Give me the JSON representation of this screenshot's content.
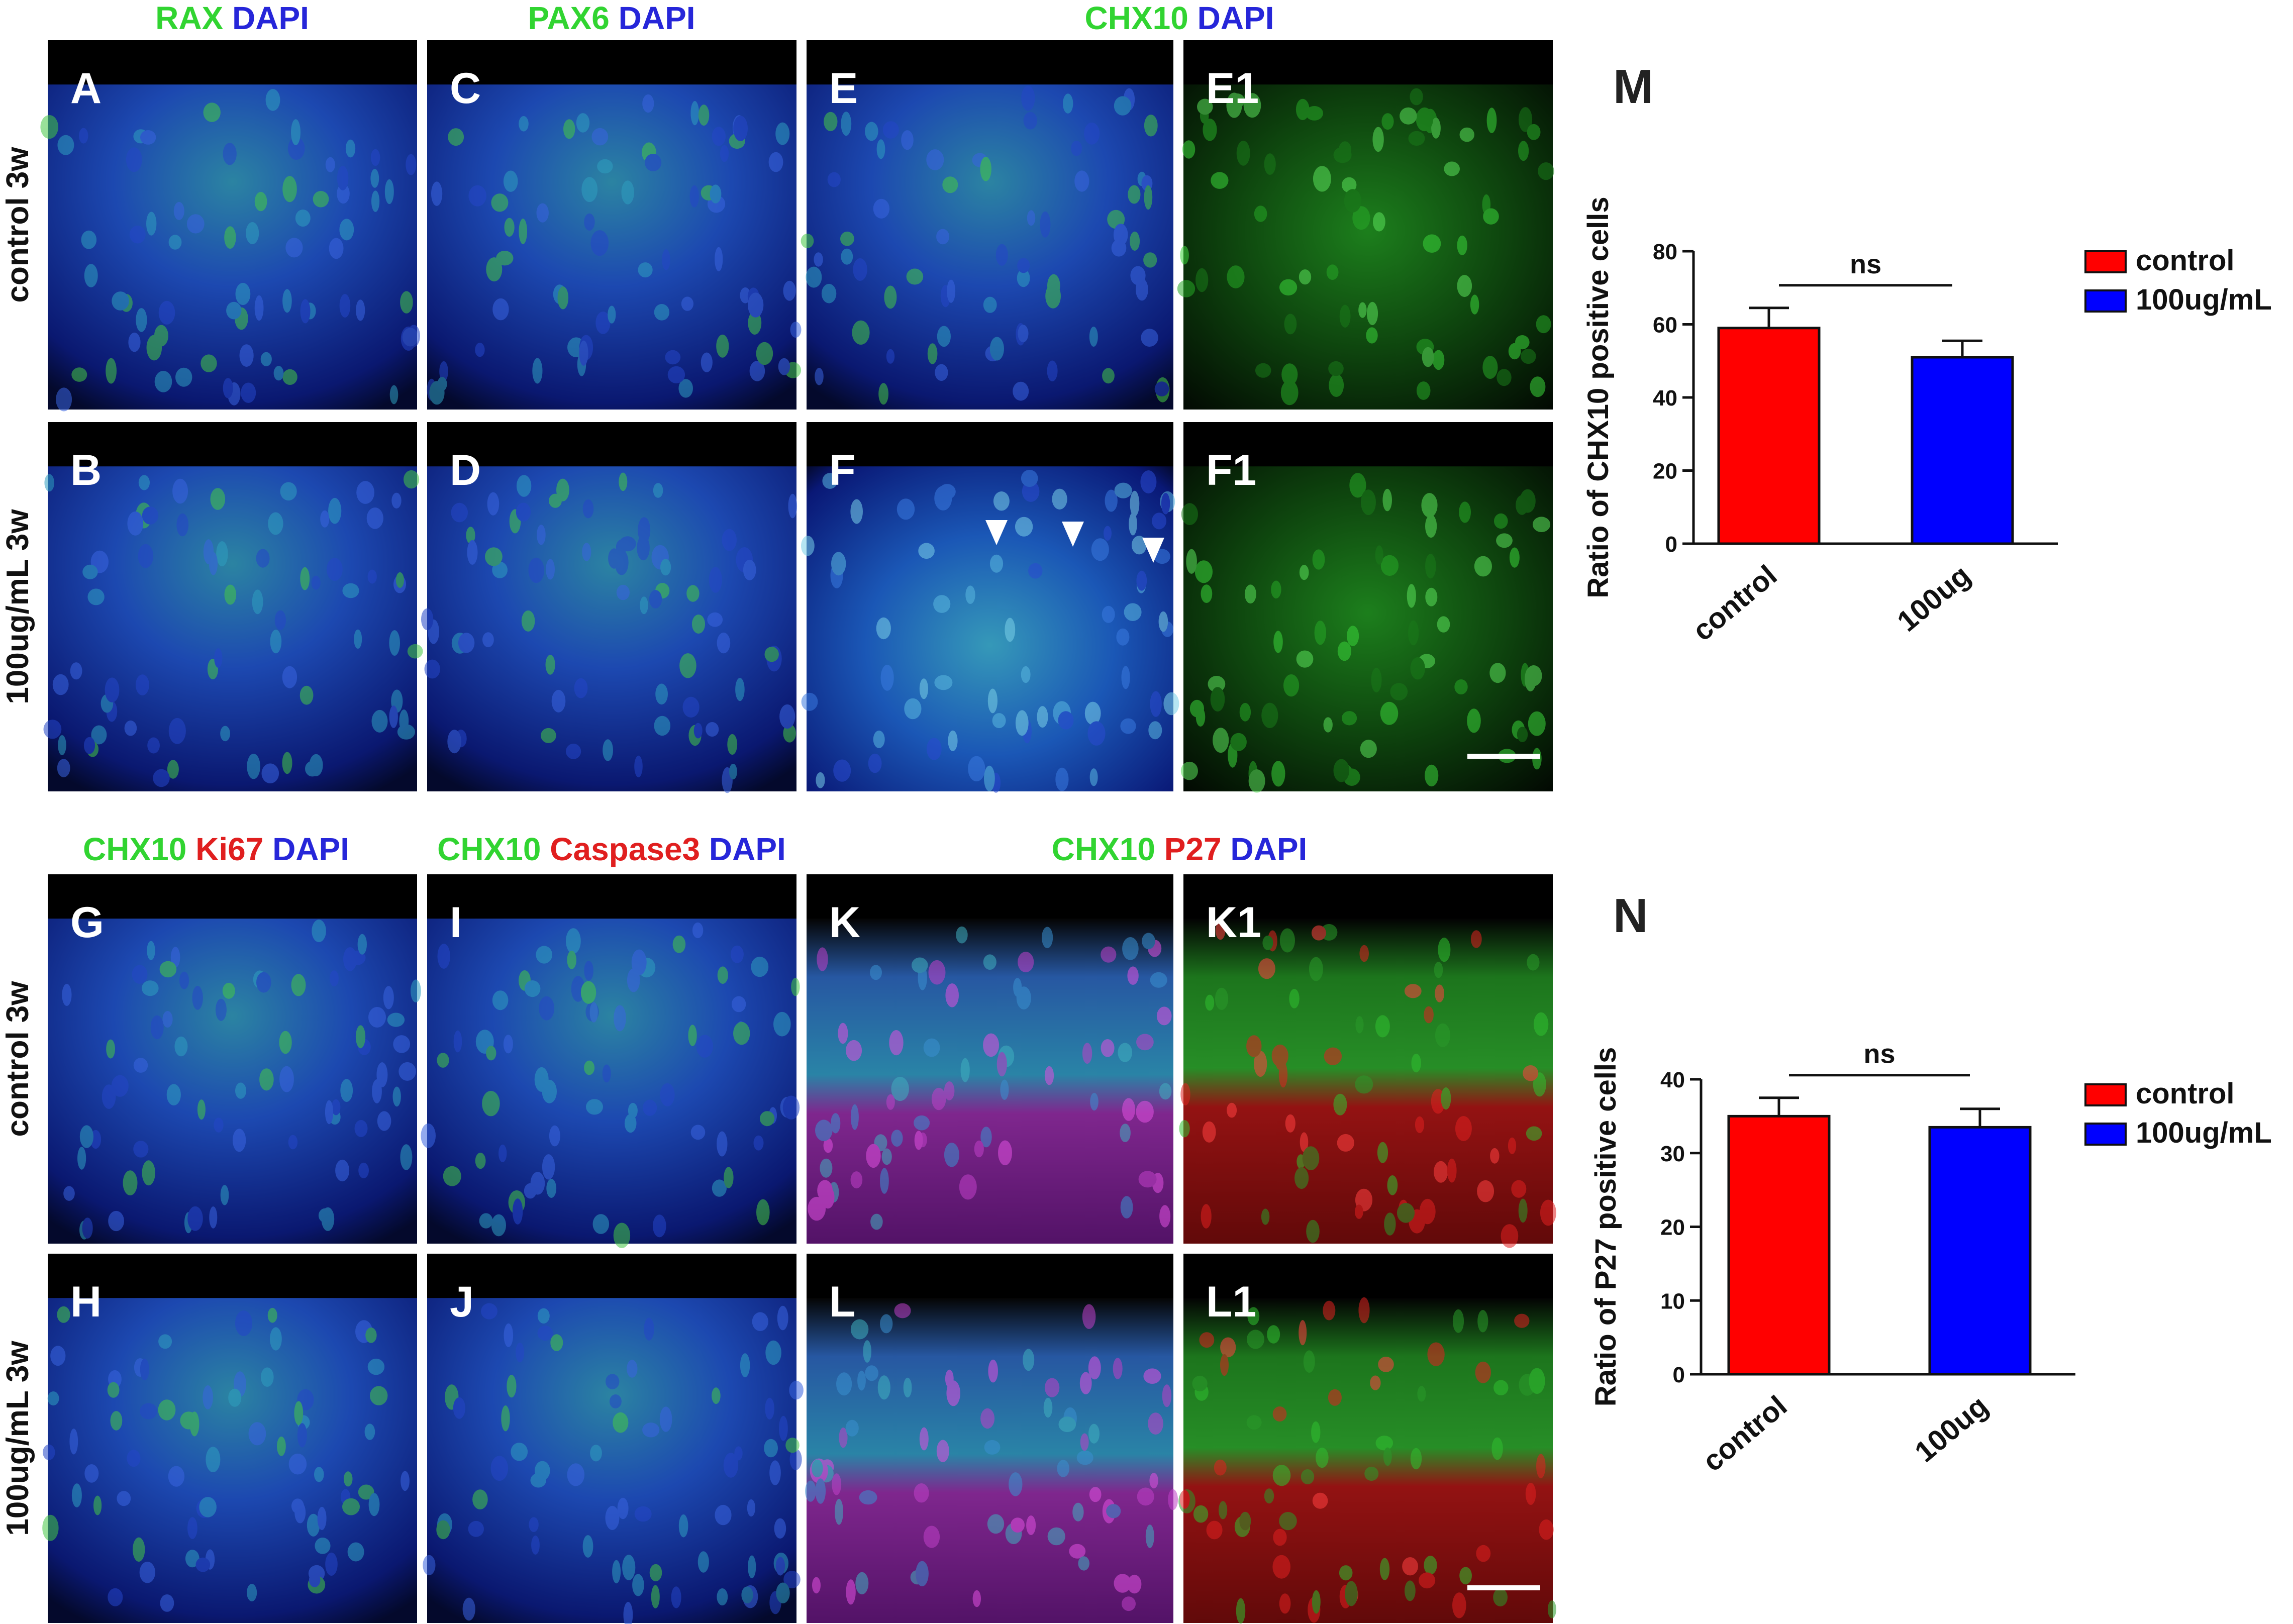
{
  "figure": {
    "row_labels": {
      "control_3w": "control  3w",
      "treated_3w": "100ug/mL  3w"
    },
    "top_headers": [
      {
        "id": "h-rax",
        "parts": [
          {
            "text": "RAX",
            "color": "#31d431"
          },
          {
            "text": "DAPI",
            "color": "#2626d9"
          }
        ]
      },
      {
        "id": "h-pax6",
        "parts": [
          {
            "text": "PAX6",
            "color": "#31d431"
          },
          {
            "text": "DAPI",
            "color": "#2626d9"
          }
        ]
      },
      {
        "id": "h-chx10",
        "parts": [
          {
            "text": "CHX10",
            "color": "#31d431"
          },
          {
            "text": "DAPI",
            "color": "#2626d9"
          }
        ]
      }
    ],
    "bottom_headers": [
      {
        "id": "h-chx10-ki67",
        "parts": [
          {
            "text": "CHX10",
            "color": "#31d431"
          },
          {
            "text": "Ki67",
            "color": "#e01f1f"
          },
          {
            "text": "DAPI",
            "color": "#2626d9"
          }
        ]
      },
      {
        "id": "h-chx10-caspase3",
        "parts": [
          {
            "text": "CHX10",
            "color": "#31d431"
          },
          {
            "text": "Caspase3",
            "color": "#e01f1f"
          },
          {
            "text": "DAPI",
            "color": "#2626d9"
          }
        ]
      },
      {
        "id": "h-chx10-p27",
        "parts": [
          {
            "text": "CHX10",
            "color": "#31d431"
          },
          {
            "text": "P27",
            "color": "#e01f1f"
          },
          {
            "text": "DAPI",
            "color": "#2626d9"
          }
        ]
      }
    ],
    "panels": [
      {
        "id": "A",
        "label": "A",
        "style": "mix"
      },
      {
        "id": "C",
        "label": "C",
        "style": "mix"
      },
      {
        "id": "E",
        "label": "E",
        "style": "mix"
      },
      {
        "id": "E1",
        "label": "E1",
        "style": "green"
      },
      {
        "id": "B",
        "label": "B",
        "style": "mix"
      },
      {
        "id": "D",
        "label": "D",
        "style": "mix"
      },
      {
        "id": "F",
        "label": "F",
        "style": "cyan"
      },
      {
        "id": "F1",
        "label": "F1",
        "style": "green"
      },
      {
        "id": "G",
        "label": "G",
        "style": "mix"
      },
      {
        "id": "I",
        "label": "I",
        "style": "mix"
      },
      {
        "id": "K",
        "label": "K",
        "style": "magenta"
      },
      {
        "id": "K1",
        "label": "K1",
        "style": "redgreen"
      },
      {
        "id": "H",
        "label": "H",
        "style": "mix"
      },
      {
        "id": "J",
        "label": "J",
        "style": "mix"
      },
      {
        "id": "L",
        "label": "L",
        "style": "magenta"
      },
      {
        "id": "L1",
        "label": "L1",
        "style": "redgreen"
      }
    ],
    "colors": {
      "control": "#ff0000",
      "treated": "#0000ff",
      "dapi": "#1a2bd6",
      "marker_green": "#31d431",
      "marker_red": "#e01f1f"
    }
  },
  "chart_data": [
    {
      "type": "bar",
      "panel_label": "M",
      "categories": [
        "control",
        "100ug"
      ],
      "values": [
        59,
        51
      ],
      "errors": [
        5.5,
        4.5
      ],
      "ylabel": "Ratio of CHX10 positive cells",
      "ylim": [
        0,
        80
      ],
      "yticks": [
        0,
        20,
        40,
        60,
        80
      ],
      "significance": "ns",
      "legend": [
        "control",
        "100ug/mL"
      ],
      "legend_position": "right"
    },
    {
      "type": "bar",
      "panel_label": "N",
      "categories": [
        "control",
        "100ug"
      ],
      "values": [
        35,
        33.5
      ],
      "errors": [
        2.5,
        2.5
      ],
      "ylabel": "Ratio of P27 positive cells",
      "ylim": [
        0,
        40
      ],
      "yticks": [
        0,
        10,
        20,
        30,
        40
      ],
      "significance": "ns",
      "legend": [
        "control",
        "100ug/mL"
      ],
      "legend_position": "right"
    }
  ]
}
